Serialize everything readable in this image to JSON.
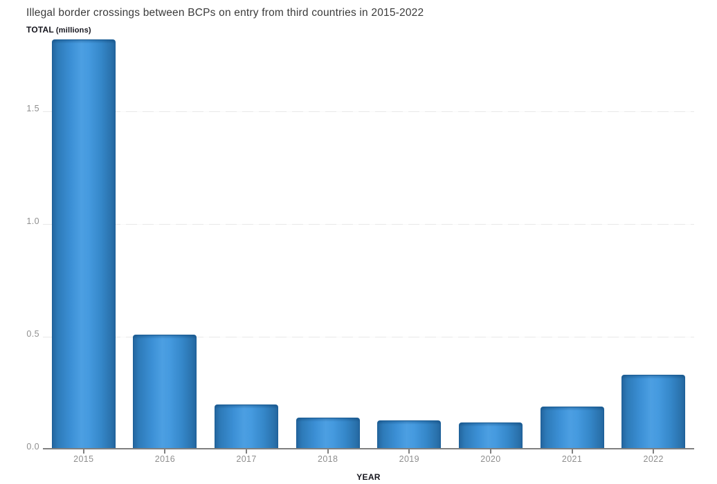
{
  "title": "Illegal border crossings between BCPs on entry from third countries in 2015-2022",
  "y_axis_title": {
    "main": "TOTAL",
    "unit": "(millions)"
  },
  "x_axis_title": "YEAR",
  "chart_data": {
    "type": "bar",
    "title": "Illegal border crossings between BCPs on entry from third countries in 2015-2022",
    "xlabel": "YEAR",
    "ylabel": "TOTAL (millions)",
    "categories": [
      "2015",
      "2016",
      "2017",
      "2018",
      "2019",
      "2020",
      "2021",
      "2022"
    ],
    "values": [
      1.82,
      0.51,
      0.2,
      0.14,
      0.13,
      0.12,
      0.19,
      0.33
    ],
    "ylim": [
      0,
      1.84
    ],
    "yticks": [
      0.0,
      0.5,
      1.0,
      1.5
    ],
    "ytick_labels": [
      "0.0",
      "0.5",
      "1.0",
      "1.5"
    ],
    "grid": "horizontal-dashed",
    "legend_position": "none"
  },
  "colors": {
    "bar_mid": "#4c9fe2",
    "bar_edge": "#24669f",
    "bar_border": "#1b5e97",
    "axis_line": "#7f7f7f",
    "gridline": "#e8e8e8",
    "tick_label": "#8e8e8e",
    "title_text": "#3a3a3a",
    "axis_title_text": "#14141c"
  }
}
